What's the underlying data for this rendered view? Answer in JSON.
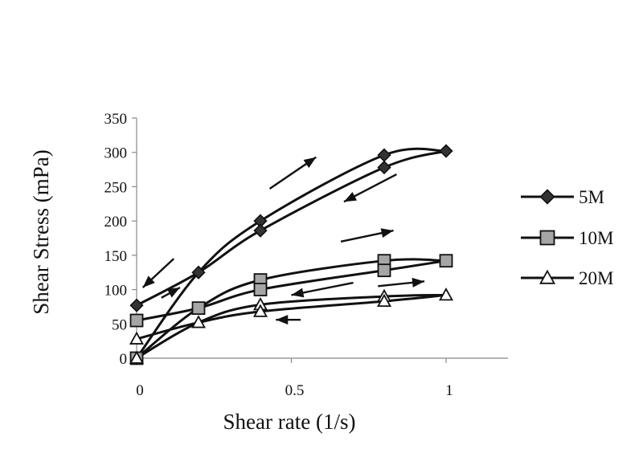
{
  "chart_data": {
    "type": "line",
    "title": "",
    "xlabel": "Shear rate (1/s)",
    "ylabel": "Shear Stress (mPa)",
    "xlim": [
      0,
      1.2
    ],
    "ylim": [
      0,
      350
    ],
    "x_ticks": [
      {
        "value": 0,
        "label": "0"
      },
      {
        "value": 0.5,
        "label": "0.5"
      },
      {
        "value": 1,
        "label": "1"
      }
    ],
    "y_ticks": [
      {
        "value": 0,
        "label": "0"
      },
      {
        "value": 50,
        "label": "50"
      },
      {
        "value": 100,
        "label": "100"
      },
      {
        "value": 150,
        "label": "150"
      },
      {
        "value": 200,
        "label": "200"
      },
      {
        "value": 250,
        "label": "250"
      },
      {
        "value": 300,
        "label": "300"
      },
      {
        "value": 350,
        "label": "350"
      }
    ],
    "grid": false,
    "legend": "right",
    "series": [
      {
        "name": "5M",
        "marker": "diamond",
        "marker_fill": "#333333",
        "up": [
          [
            0,
            0
          ],
          [
            0.2,
            125
          ],
          [
            0.4,
            200
          ],
          [
            0.8,
            296
          ],
          [
            1,
            302
          ]
        ],
        "down": [
          [
            1,
            302
          ],
          [
            0.8,
            278
          ],
          [
            0.4,
            186
          ],
          [
            0.2,
            125
          ],
          [
            0,
            77
          ]
        ]
      },
      {
        "name": "10M",
        "marker": "square",
        "marker_fill": "#a6a6a6",
        "up": [
          [
            0,
            0
          ],
          [
            0.2,
            73
          ],
          [
            0.4,
            114
          ],
          [
            0.8,
            142
          ],
          [
            1,
            142
          ]
        ],
        "down": [
          [
            1,
            142
          ],
          [
            0.8,
            128
          ],
          [
            0.4,
            100
          ],
          [
            0.2,
            73
          ],
          [
            0,
            55
          ]
        ]
      },
      {
        "name": "20M",
        "marker": "triangle",
        "marker_fill": "#ffffff",
        "up": [
          [
            0,
            0
          ],
          [
            0.2,
            52
          ],
          [
            0.4,
            78
          ],
          [
            0.8,
            90
          ],
          [
            1,
            92
          ]
        ],
        "down": [
          [
            1,
            92
          ],
          [
            0.8,
            83
          ],
          [
            0.4,
            68
          ],
          [
            0.2,
            52
          ],
          [
            0,
            28
          ]
        ]
      }
    ],
    "annotations": [
      {
        "type": "arrow",
        "direction": "up-right",
        "from": [
          0.43,
          247
        ],
        "to": [
          0.58,
          293
        ]
      },
      {
        "type": "arrow",
        "direction": "down-left",
        "from": [
          0.84,
          268
        ],
        "to": [
          0.67,
          228
        ]
      },
      {
        "type": "arrow",
        "direction": "right",
        "from": [
          0.66,
          170
        ],
        "to": [
          0.83,
          186
        ]
      },
      {
        "type": "arrow",
        "direction": "down-left",
        "from": [
          0.12,
          145
        ],
        "to": [
          0.02,
          103
        ]
      },
      {
        "type": "arrow",
        "direction": "up-right",
        "from": [
          0.08,
          88
        ],
        "to": [
          0.14,
          103
        ]
      },
      {
        "type": "arrow",
        "direction": "left",
        "from": [
          0.7,
          110
        ],
        "to": [
          0.5,
          92
        ]
      },
      {
        "type": "arrow",
        "direction": "right",
        "from": [
          0.78,
          105
        ],
        "to": [
          0.93,
          112
        ]
      },
      {
        "type": "arrow",
        "direction": "left",
        "from": [
          0.53,
          56
        ],
        "to": [
          0.45,
          56
        ]
      }
    ]
  }
}
